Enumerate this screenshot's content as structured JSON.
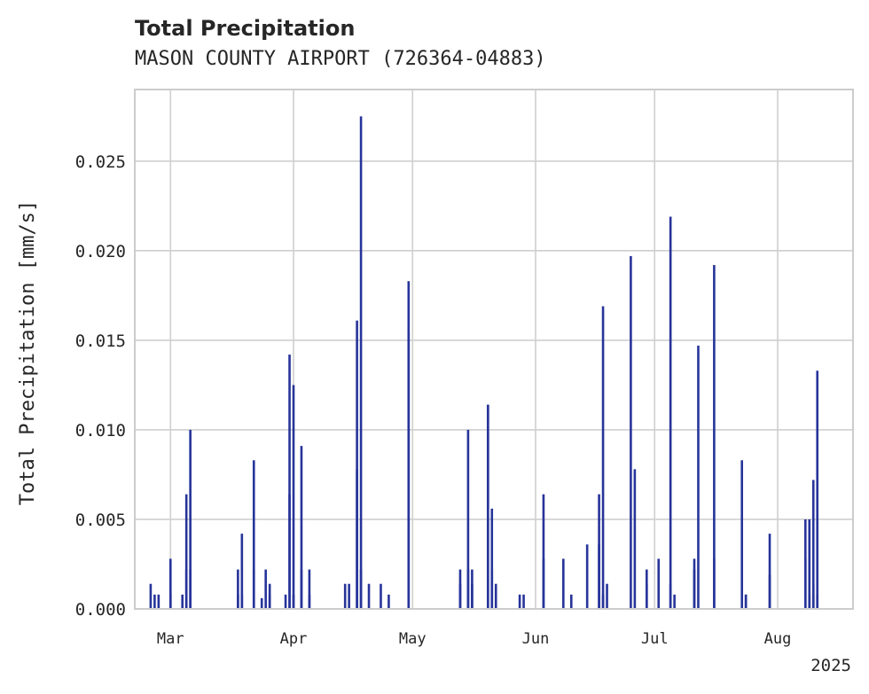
{
  "chart_data": {
    "type": "bar",
    "title": "Total Precipitation",
    "subtitle": "MASON COUNTY AIRPORT (726364-04883)",
    "ylabel": "Total Precipitation [mm/s]",
    "xlabel": "",
    "x_axis": {
      "type": "date",
      "range": [
        "2025-02-20",
        "2025-08-20"
      ],
      "ticks": [
        {
          "date": "2025-03-01",
          "label": "Mar"
        },
        {
          "date": "2025-04-01",
          "label": "Apr"
        },
        {
          "date": "2025-05-01",
          "label": "May"
        },
        {
          "date": "2025-06-01",
          "label": "Jun"
        },
        {
          "date": "2025-07-01",
          "label": "Jul"
        },
        {
          "date": "2025-08-01",
          "label": "Aug"
        }
      ],
      "offset_label": "2025"
    },
    "ylim": [
      0,
      0.029
    ],
    "yticks": [
      {
        "value": 0.0,
        "label": "0.000"
      },
      {
        "value": 0.005,
        "label": "0.005"
      },
      {
        "value": 0.01,
        "label": "0.010"
      },
      {
        "value": 0.015,
        "label": "0.015"
      },
      {
        "value": 0.02,
        "label": "0.020"
      },
      {
        "value": 0.025,
        "label": "0.025"
      }
    ],
    "grid": true,
    "color": "#27349a",
    "series": [
      {
        "points": [
          [
            "2025-02-24",
            0.0014
          ],
          [
            "2025-02-25",
            0.0008
          ],
          [
            "2025-02-26",
            0.0008
          ],
          [
            "2025-03-01",
            0.0028
          ],
          [
            "2025-03-01",
            0.0008
          ],
          [
            "2025-03-04",
            0.0008
          ],
          [
            "2025-03-05",
            0.0022
          ],
          [
            "2025-03-05",
            0.0064
          ],
          [
            "2025-03-06",
            0.01
          ],
          [
            "2025-03-06",
            0.0022
          ],
          [
            "2025-03-18",
            0.0022
          ],
          [
            "2025-03-18",
            0.0008
          ],
          [
            "2025-03-19",
            0.0042
          ],
          [
            "2025-03-19",
            0.0008
          ],
          [
            "2025-03-22",
            0.0083
          ],
          [
            "2025-03-22",
            0.0022
          ],
          [
            "2025-03-24",
            0.0006
          ],
          [
            "2025-03-25",
            0.0022
          ],
          [
            "2025-03-26",
            0.0014
          ],
          [
            "2025-03-26",
            0.0008
          ],
          [
            "2025-03-30",
            0.0008
          ],
          [
            "2025-03-31",
            0.0064
          ],
          [
            "2025-03-31",
            0.0142
          ],
          [
            "2025-04-01",
            0.0125
          ],
          [
            "2025-04-01",
            0.0008
          ],
          [
            "2025-04-03",
            0.0091
          ],
          [
            "2025-04-03",
            0.0022
          ],
          [
            "2025-04-05",
            0.0022
          ],
          [
            "2025-04-05",
            0.0008
          ],
          [
            "2025-04-14",
            0.0014
          ],
          [
            "2025-04-15",
            0.0014
          ],
          [
            "2025-04-17",
            0.0161
          ],
          [
            "2025-04-17",
            0.0078
          ],
          [
            "2025-04-18",
            0.0275
          ],
          [
            "2025-04-18",
            0.0022
          ],
          [
            "2025-04-20",
            0.0014
          ],
          [
            "2025-04-23",
            0.0014
          ],
          [
            "2025-04-25",
            0.0008
          ],
          [
            "2025-04-30",
            0.0155
          ],
          [
            "2025-04-30",
            0.0183
          ],
          [
            "2025-05-13",
            0.0022
          ],
          [
            "2025-05-13",
            0.0014
          ],
          [
            "2025-05-15",
            0.01
          ],
          [
            "2025-05-15",
            0.0022
          ],
          [
            "2025-05-16",
            0.0022
          ],
          [
            "2025-05-16",
            0.0014
          ],
          [
            "2025-05-20",
            0.0114
          ],
          [
            "2025-05-20",
            0.0114
          ],
          [
            "2025-05-21",
            0.0056
          ],
          [
            "2025-05-21",
            0.0022
          ],
          [
            "2025-05-22",
            0.0014
          ],
          [
            "2025-05-28",
            0.0008
          ],
          [
            "2025-05-29",
            0.0008
          ],
          [
            "2025-06-03",
            0.0064
          ],
          [
            "2025-06-03",
            0.0028
          ],
          [
            "2025-06-08",
            0.0028
          ],
          [
            "2025-06-10",
            0.0008
          ],
          [
            "2025-06-14",
            0.0036
          ],
          [
            "2025-06-17",
            0.0036
          ],
          [
            "2025-06-17",
            0.0064
          ],
          [
            "2025-06-18",
            0.0169
          ],
          [
            "2025-06-18",
            0.0008
          ],
          [
            "2025-06-19",
            0.0014
          ],
          [
            "2025-06-25",
            0.0197
          ],
          [
            "2025-06-26",
            0.0078
          ],
          [
            "2025-06-29",
            0.0022
          ],
          [
            "2025-06-29",
            0.0014
          ],
          [
            "2025-07-02",
            0.0028
          ],
          [
            "2025-07-05",
            0.0219
          ],
          [
            "2025-07-05",
            0.0014
          ],
          [
            "2025-07-06",
            0.0008
          ],
          [
            "2025-07-11",
            0.0022
          ],
          [
            "2025-07-11",
            0.0028
          ],
          [
            "2025-07-12",
            0.0147
          ],
          [
            "2025-07-16",
            0.0192
          ],
          [
            "2025-07-16",
            0.0028
          ],
          [
            "2025-07-23",
            0.0083
          ],
          [
            "2025-07-24",
            0.0008
          ],
          [
            "2025-07-24",
            0.0008
          ],
          [
            "2025-07-30",
            0.0042
          ],
          [
            "2025-07-30",
            0.0019
          ],
          [
            "2025-08-08",
            0.0028
          ],
          [
            "2025-08-08",
            0.005
          ],
          [
            "2025-08-09",
            0.0008
          ],
          [
            "2025-08-09",
            0.005
          ],
          [
            "2025-08-10",
            0.0008
          ],
          [
            "2025-08-10",
            0.0014
          ],
          [
            "2025-08-10",
            0.0072
          ],
          [
            "2025-08-11",
            0.0133
          ],
          [
            "2025-08-11",
            0.0008
          ]
        ]
      }
    ]
  }
}
